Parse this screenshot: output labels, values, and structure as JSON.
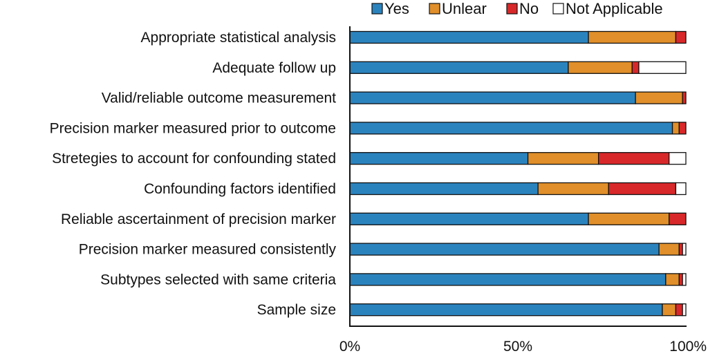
{
  "chart_data": {
    "type": "bar",
    "orientation": "horizontal",
    "stacked": true,
    "normalized": true,
    "legend": {
      "position": "top",
      "entries": [
        {
          "name": "Yes",
          "color": "#2b83be"
        },
        {
          "name": "Unlear",
          "color": "#e08f2a"
        },
        {
          "name": "No",
          "color": "#d8282a"
        },
        {
          "name": "Not Applicable",
          "color": "#ffffff"
        }
      ]
    },
    "categories": [
      "Appropriate statistical analysis",
      "Adequate follow up",
      "Valid/reliable outcome measurement",
      "Precision marker measured prior to outcome",
      "Stretegies to account for confounding stated",
      "Confounding factors identified",
      "Reliable ascertainment of precision marker",
      "Precision marker measured consistently",
      "Subtypes selected with same criteria",
      "Sample size"
    ],
    "series": [
      {
        "name": "Yes",
        "color": "#2b83be",
        "values": [
          71,
          65,
          85,
          96,
          53,
          56,
          71,
          92,
          94,
          93
        ]
      },
      {
        "name": "Unlear",
        "color": "#e08f2a",
        "values": [
          26,
          19,
          14,
          2,
          21,
          21,
          24,
          6,
          4,
          4
        ]
      },
      {
        "name": "No",
        "color": "#d8282a",
        "values": [
          3,
          2,
          1,
          2,
          21,
          20,
          5,
          1,
          1,
          2
        ]
      },
      {
        "name": "Not Applicable",
        "color": "#ffffff",
        "values": [
          0,
          14,
          0,
          0,
          5,
          3,
          0,
          1,
          1,
          1
        ]
      }
    ],
    "xaxis": {
      "min": 0,
      "max": 100,
      "ticks": [
        0,
        50,
        100
      ],
      "tick_labels": [
        "0%",
        "50%",
        "100%"
      ]
    },
    "grid": false
  }
}
